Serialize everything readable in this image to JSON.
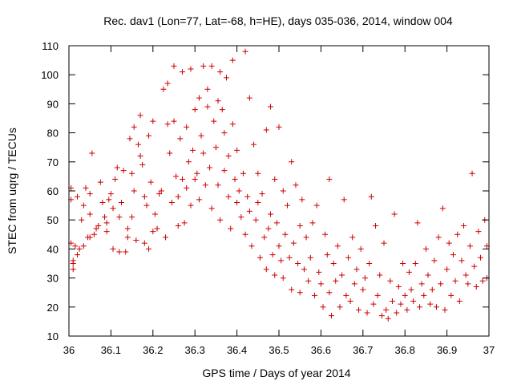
{
  "chart_data": {
    "type": "scatter",
    "title": "Rec. dav1 (Lon=77, Lat=-68, h=HE), days 035-036, 2014, window 004",
    "xlabel": "GPS time / Days of year 2014",
    "ylabel": "STEC from uqrg / TECUs",
    "xlim": [
      36,
      37
    ],
    "ylim": [
      10,
      110
    ],
    "xticks": [
      36,
      36.1,
      36.2,
      36.3,
      36.4,
      36.5,
      36.6,
      36.7,
      36.8,
      36.9,
      37
    ],
    "xtick_labels": [
      "36",
      "36.1",
      "36.2",
      "36.3",
      "36.4",
      "36.5",
      "36.6",
      "36.7",
      "36.8",
      "36.9",
      "37"
    ],
    "yticks": [
      10,
      20,
      30,
      40,
      50,
      60,
      70,
      80,
      90,
      100,
      110
    ],
    "ytick_labels": [
      "10",
      "20",
      "30",
      "40",
      "50",
      "60",
      "70",
      "80",
      "90",
      "100",
      "110"
    ],
    "marker": "+",
    "color": "#cc0000",
    "series": [
      {
        "name": "STEC",
        "points": [
          [
            36.005,
            61
          ],
          [
            36.005,
            57
          ],
          [
            36.005,
            42
          ],
          [
            36.01,
            33
          ],
          [
            36.01,
            36
          ],
          [
            36.01,
            35
          ],
          [
            36.015,
            41
          ],
          [
            36.02,
            38
          ],
          [
            36.02,
            58
          ],
          [
            36.025,
            40
          ],
          [
            36.03,
            50
          ],
          [
            36.035,
            41
          ],
          [
            36.035,
            55
          ],
          [
            36.04,
            61
          ],
          [
            36.045,
            44
          ],
          [
            36.05,
            44
          ],
          [
            36.05,
            52
          ],
          [
            36.05,
            59
          ],
          [
            36.055,
            73
          ],
          [
            36.06,
            45
          ],
          [
            36.065,
            47
          ],
          [
            36.07,
            48
          ],
          [
            36.075,
            63
          ],
          [
            36.08,
            56
          ],
          [
            36.085,
            51
          ],
          [
            36.09,
            46
          ],
          [
            36.09,
            49
          ],
          [
            36.095,
            57
          ],
          [
            36.1,
            59
          ],
          [
            36.105,
            54
          ],
          [
            36.105,
            40
          ],
          [
            36.11,
            64
          ],
          [
            36.115,
            68
          ],
          [
            36.12,
            39
          ],
          [
            36.12,
            51
          ],
          [
            36.125,
            56
          ],
          [
            36.13,
            67
          ],
          [
            36.135,
            39
          ],
          [
            36.14,
            44
          ],
          [
            36.14,
            47
          ],
          [
            36.145,
            78
          ],
          [
            36.15,
            51
          ],
          [
            36.15,
            66
          ],
          [
            36.155,
            60
          ],
          [
            36.155,
            82
          ],
          [
            36.16,
            43
          ],
          [
            36.165,
            76
          ],
          [
            36.17,
            72
          ],
          [
            36.17,
            86
          ],
          [
            36.175,
            69
          ],
          [
            36.18,
            42
          ],
          [
            36.18,
            58
          ],
          [
            36.185,
            55
          ],
          [
            36.19,
            40
          ],
          [
            36.19,
            79
          ],
          [
            36.195,
            63
          ],
          [
            36.2,
            46
          ],
          [
            36.2,
            84
          ],
          [
            36.205,
            52
          ],
          [
            36.21,
            47
          ],
          [
            36.215,
            59
          ],
          [
            36.22,
            60
          ],
          [
            36.225,
            95
          ],
          [
            36.23,
            44
          ],
          [
            36.235,
            83
          ],
          [
            36.235,
            97
          ],
          [
            36.24,
            73
          ],
          [
            36.245,
            56
          ],
          [
            36.25,
            103
          ],
          [
            36.25,
            84
          ],
          [
            36.255,
            65
          ],
          [
            36.26,
            48
          ],
          [
            36.26,
            58
          ],
          [
            36.265,
            78
          ],
          [
            36.27,
            101
          ],
          [
            36.27,
            64
          ],
          [
            36.275,
            49
          ],
          [
            36.28,
            61
          ],
          [
            36.28,
            82
          ],
          [
            36.285,
            70
          ],
          [
            36.29,
            55
          ],
          [
            36.29,
            102
          ],
          [
            36.295,
            74
          ],
          [
            36.3,
            88
          ],
          [
            36.3,
            64
          ],
          [
            36.305,
            66
          ],
          [
            36.31,
            92
          ],
          [
            36.31,
            57
          ],
          [
            36.315,
            79
          ],
          [
            36.32,
            103
          ],
          [
            36.32,
            73
          ],
          [
            36.325,
            62
          ],
          [
            36.33,
            95
          ],
          [
            36.33,
            89
          ],
          [
            36.335,
            68
          ],
          [
            36.34,
            54
          ],
          [
            36.34,
            103
          ],
          [
            36.345,
            84
          ],
          [
            36.35,
            75
          ],
          [
            36.355,
            91
          ],
          [
            36.355,
            62
          ],
          [
            36.36,
            101
          ],
          [
            36.36,
            50
          ],
          [
            36.365,
            88
          ],
          [
            36.37,
            80
          ],
          [
            36.37,
            67
          ],
          [
            36.375,
            99
          ],
          [
            36.38,
            58
          ],
          [
            36.38,
            72
          ],
          [
            36.385,
            47
          ],
          [
            36.39,
            105
          ],
          [
            36.39,
            83
          ],
          [
            36.395,
            64
          ],
          [
            36.4,
            56
          ],
          [
            36.4,
            74
          ],
          [
            36.405,
            60
          ],
          [
            36.41,
            51
          ],
          [
            36.415,
            66
          ],
          [
            36.42,
            108
          ],
          [
            36.42,
            45
          ],
          [
            36.425,
            58
          ],
          [
            36.43,
            92
          ],
          [
            36.43,
            53
          ],
          [
            36.435,
            41
          ],
          [
            36.44,
            76
          ],
          [
            36.445,
            50
          ],
          [
            36.45,
            66
          ],
          [
            36.45,
            56
          ],
          [
            36.455,
            37
          ],
          [
            36.46,
            59
          ],
          [
            36.465,
            44
          ],
          [
            36.47,
            81
          ],
          [
            36.47,
            33
          ],
          [
            36.475,
            47
          ],
          [
            36.48,
            89
          ],
          [
            36.48,
            52
          ],
          [
            36.485,
            38
          ],
          [
            36.49,
            64
          ],
          [
            36.49,
            31
          ],
          [
            36.495,
            49
          ],
          [
            36.5,
            82
          ],
          [
            36.5,
            41
          ],
          [
            36.505,
            36
          ],
          [
            36.51,
            60
          ],
          [
            36.51,
            30
          ],
          [
            36.515,
            45
          ],
          [
            36.52,
            55
          ],
          [
            36.525,
            37
          ],
          [
            36.53,
            70
          ],
          [
            36.53,
            26
          ],
          [
            36.535,
            42
          ],
          [
            36.54,
            62
          ],
          [
            36.545,
            35
          ],
          [
            36.55,
            48
          ],
          [
            36.55,
            25
          ],
          [
            36.555,
            57
          ],
          [
            36.56,
            33
          ],
          [
            36.565,
            44
          ],
          [
            36.57,
            29
          ],
          [
            36.575,
            37
          ],
          [
            36.58,
            49
          ],
          [
            36.585,
            24
          ],
          [
            36.59,
            55
          ],
          [
            36.595,
            32
          ],
          [
            36.6,
            28
          ],
          [
            36.605,
            20
          ],
          [
            36.61,
            45
          ],
          [
            36.615,
            38
          ],
          [
            36.62,
            25
          ],
          [
            36.62,
            64
          ],
          [
            36.625,
            17
          ],
          [
            36.63,
            35
          ],
          [
            36.635,
            29
          ],
          [
            36.64,
            41
          ],
          [
            36.645,
            20
          ],
          [
            36.65,
            31
          ],
          [
            36.655,
            57
          ],
          [
            36.66,
            24
          ],
          [
            36.665,
            37
          ],
          [
            36.67,
            22
          ],
          [
            36.675,
            44
          ],
          [
            36.68,
            28
          ],
          [
            36.685,
            33
          ],
          [
            36.69,
            19
          ],
          [
            36.695,
            40
          ],
          [
            36.7,
            26
          ],
          [
            36.705,
            30
          ],
          [
            36.71,
            18
          ],
          [
            36.715,
            35
          ],
          [
            36.72,
            58
          ],
          [
            36.725,
            21
          ],
          [
            36.73,
            48
          ],
          [
            36.735,
            24
          ],
          [
            36.74,
            31
          ],
          [
            36.745,
            17
          ],
          [
            36.75,
            42
          ],
          [
            36.755,
            19
          ],
          [
            36.76,
            16
          ],
          [
            36.765,
            29
          ],
          [
            36.77,
            22
          ],
          [
            36.775,
            52
          ],
          [
            36.78,
            18
          ],
          [
            36.785,
            27
          ],
          [
            36.79,
            21
          ],
          [
            36.795,
            35
          ],
          [
            36.8,
            24
          ],
          [
            36.805,
            19
          ],
          [
            36.81,
            32
          ],
          [
            36.815,
            26
          ],
          [
            36.82,
            22
          ],
          [
            36.825,
            35
          ],
          [
            36.83,
            49
          ],
          [
            36.835,
            20
          ],
          [
            36.84,
            28
          ],
          [
            36.845,
            24
          ],
          [
            36.85,
            40
          ],
          [
            36.855,
            31
          ],
          [
            36.86,
            21
          ],
          [
            36.865,
            26
          ],
          [
            36.87,
            36
          ],
          [
            36.875,
            20
          ],
          [
            36.88,
            44
          ],
          [
            36.885,
            28
          ],
          [
            36.89,
            54
          ],
          [
            36.895,
            19
          ],
          [
            36.9,
            33
          ],
          [
            36.905,
            42
          ],
          [
            36.91,
            24
          ],
          [
            36.915,
            38
          ],
          [
            36.92,
            29
          ],
          [
            36.925,
            45
          ],
          [
            36.93,
            22
          ],
          [
            36.935,
            36
          ],
          [
            36.94,
            48
          ],
          [
            36.945,
            31
          ],
          [
            36.95,
            28
          ],
          [
            36.955,
            41
          ],
          [
            36.96,
            66
          ],
          [
            36.965,
            34
          ],
          [
            36.97,
            27
          ],
          [
            36.975,
            46
          ],
          [
            36.98,
            37
          ],
          [
            36.985,
            29
          ],
          [
            36.99,
            50
          ],
          [
            36.995,
            41
          ],
          [
            36.995,
            30
          ]
        ]
      }
    ]
  }
}
